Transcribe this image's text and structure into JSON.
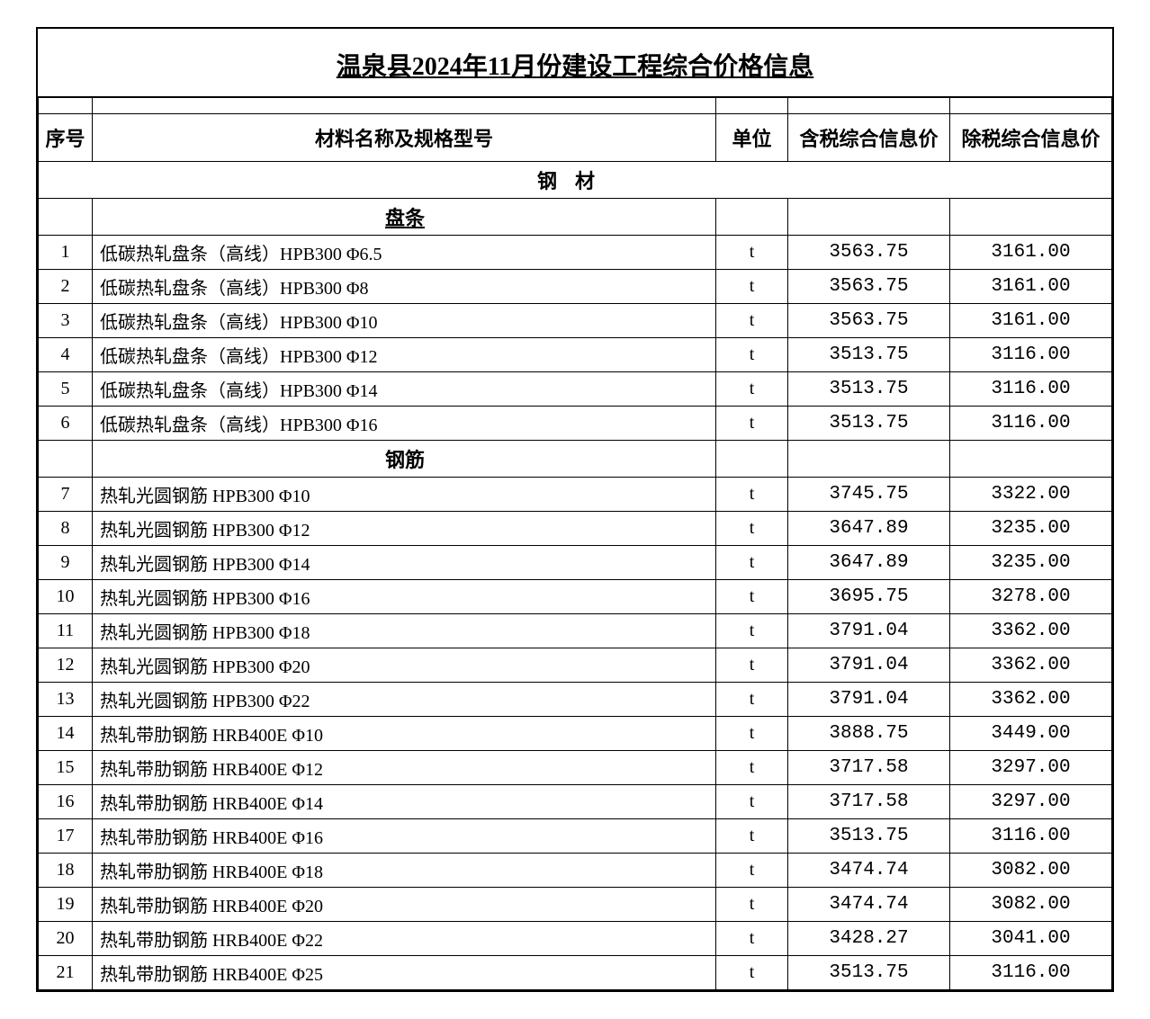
{
  "title": "温泉县2024年11月份建设工程综合价格信息",
  "headers": {
    "seq": "序号",
    "name": "材料名称及规格型号",
    "unit": "单位",
    "price_tax": "含税综合信息价",
    "price_notax": "除税综合信息价"
  },
  "category": "钢材",
  "subcategory1": "盘条",
  "subcategory2": "钢筋",
  "rows1": [
    {
      "seq": "1",
      "name": "低碳热轧盘条（高线）HPB300 Φ6.5",
      "unit": "t",
      "p1": "3563.75",
      "p2": "3161.00"
    },
    {
      "seq": "2",
      "name": "低碳热轧盘条（高线）HPB300 Φ8",
      "unit": "t",
      "p1": "3563.75",
      "p2": "3161.00"
    },
    {
      "seq": "3",
      "name": "低碳热轧盘条（高线）HPB300 Φ10",
      "unit": "t",
      "p1": "3563.75",
      "p2": "3161.00"
    },
    {
      "seq": "4",
      "name": "低碳热轧盘条（高线）HPB300 Φ12",
      "unit": "t",
      "p1": "3513.75",
      "p2": "3116.00"
    },
    {
      "seq": "5",
      "name": "低碳热轧盘条（高线）HPB300 Φ14",
      "unit": "t",
      "p1": "3513.75",
      "p2": "3116.00"
    },
    {
      "seq": "6",
      "name": "低碳热轧盘条（高线）HPB300 Φ16",
      "unit": "t",
      "p1": "3513.75",
      "p2": "3116.00"
    }
  ],
  "rows2": [
    {
      "seq": "7",
      "name": "热轧光圆钢筋 HPB300 Φ10",
      "unit": "t",
      "p1": "3745.75",
      "p2": "3322.00"
    },
    {
      "seq": "8",
      "name": "热轧光圆钢筋 HPB300 Φ12",
      "unit": "t",
      "p1": "3647.89",
      "p2": "3235.00"
    },
    {
      "seq": "9",
      "name": "热轧光圆钢筋 HPB300 Φ14",
      "unit": "t",
      "p1": "3647.89",
      "p2": "3235.00"
    },
    {
      "seq": "10",
      "name": "热轧光圆钢筋 HPB300 Φ16",
      "unit": "t",
      "p1": "3695.75",
      "p2": "3278.00"
    },
    {
      "seq": "11",
      "name": "热轧光圆钢筋 HPB300 Φ18",
      "unit": "t",
      "p1": "3791.04",
      "p2": "3362.00"
    },
    {
      "seq": "12",
      "name": "热轧光圆钢筋 HPB300 Φ20",
      "unit": "t",
      "p1": "3791.04",
      "p2": "3362.00"
    },
    {
      "seq": "13",
      "name": "热轧光圆钢筋 HPB300 Φ22",
      "unit": "t",
      "p1": "3791.04",
      "p2": "3362.00"
    },
    {
      "seq": "14",
      "name": "热轧带肋钢筋 HRB400E Φ10",
      "unit": "t",
      "p1": "3888.75",
      "p2": "3449.00"
    },
    {
      "seq": "15",
      "name": "热轧带肋钢筋 HRB400E Φ12",
      "unit": "t",
      "p1": "3717.58",
      "p2": "3297.00"
    },
    {
      "seq": "16",
      "name": "热轧带肋钢筋 HRB400E Φ14",
      "unit": "t",
      "p1": "3717.58",
      "p2": "3297.00"
    },
    {
      "seq": "17",
      "name": "热轧带肋钢筋 HRB400E Φ16",
      "unit": "t",
      "p1": "3513.75",
      "p2": "3116.00"
    },
    {
      "seq": "18",
      "name": "热轧带肋钢筋 HRB400E Φ18",
      "unit": "t",
      "p1": "3474.74",
      "p2": "3082.00"
    },
    {
      "seq": "19",
      "name": "热轧带肋钢筋 HRB400E Φ20",
      "unit": "t",
      "p1": "3474.74",
      "p2": "3082.00"
    },
    {
      "seq": "20",
      "name": "热轧带肋钢筋 HRB400E Φ22",
      "unit": "t",
      "p1": "3428.27",
      "p2": "3041.00"
    },
    {
      "seq": "21",
      "name": "热轧带肋钢筋 HRB400E Φ25",
      "unit": "t",
      "p1": "3513.75",
      "p2": "3116.00"
    }
  ],
  "styling": {
    "border_color": "#000000",
    "background_color": "#ffffff",
    "title_fontsize": 28,
    "header_fontsize": 22,
    "body_fontsize": 20,
    "font_family_cn": "SimSun",
    "font_family_num": "Courier New",
    "column_widths": {
      "seq": 60,
      "unit": 80,
      "price": 180
    }
  }
}
